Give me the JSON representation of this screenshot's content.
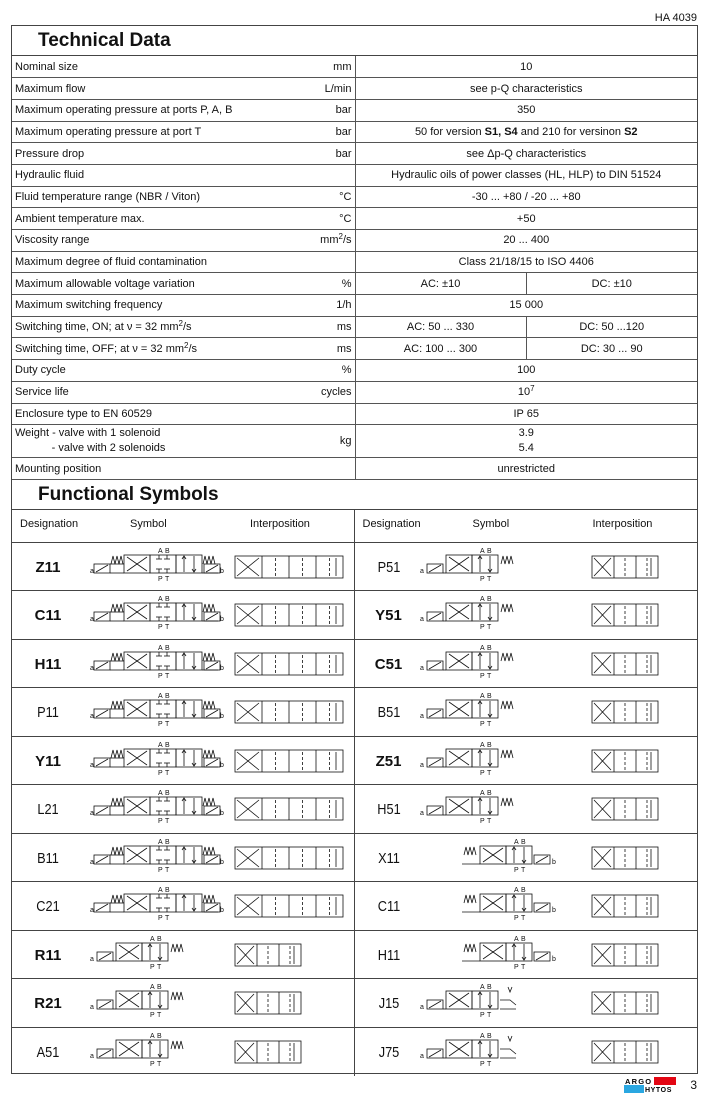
{
  "doc_id": "HA 4039",
  "technical_data": {
    "title": "Technical Data",
    "rows": [
      {
        "label": "Nominal size",
        "unit": "mm",
        "value": "10"
      },
      {
        "label": "Maximum flow",
        "unit": "L/min",
        "value": "see p-Q characteristics"
      },
      {
        "label": "Maximum operating pressure at ports  P, A, B",
        "unit": "bar",
        "value": "350"
      },
      {
        "label": "Maximum operating pressure at port T",
        "unit": "bar",
        "value_html": "50 for version <b>S1, S4</b> and 210 for versinon <b>S2</b>"
      },
      {
        "label": "Pressure drop",
        "unit": "bar",
        "value": "see Δp-Q characteristics"
      },
      {
        "label": "Hydraulic fluid",
        "unit": "",
        "value": "Hydraulic oils of power classes (HL, HLP) to DIN 51524"
      },
      {
        "label": "Fluid  temperature range (NBR / Viton)",
        "unit": "°C",
        "value": "-30 ...  +80 / -20 ... +80"
      },
      {
        "label": "Ambient temperature max.",
        "unit": "°C",
        "value": "+50"
      },
      {
        "label": "Viscosity range",
        "unit_html": "mm<sup>2</sup>/s",
        "value": "20 ... 400"
      },
      {
        "label": "Maximum degree of fluid contamination",
        "unit": "",
        "value": "Class 21/18/15 to ISO 4406"
      },
      {
        "label": "Maximum allowable voltage variation",
        "unit": "%",
        "ac": "AC: ±10",
        "dc": "DC: ±10"
      },
      {
        "label": "Maximum switching frequency",
        "unit": "1/h",
        "value": "15 000"
      },
      {
        "label_html": "Switching time, ON; at ν = 32 mm<sup>2</sup>/s",
        "unit": "ms",
        "ac": "AC: 50 ... 330",
        "dc": "DC: 50 ...120"
      },
      {
        "label_html": "Switching time, OFF; at ν = 32 mm<sup>2</sup>/s",
        "unit": "ms",
        "ac": "AC: 100 ... 300",
        "dc": "DC: 30 ... 90"
      },
      {
        "label": "Duty cycle",
        "unit": "%",
        "value": "100"
      },
      {
        "label": "Service life",
        "unit": "cycles",
        "value_html": "10<sup>7</sup>"
      },
      {
        "label": "Enclosure type to EN 60529",
        "unit": "",
        "value": "IP 65"
      },
      {
        "label_html": "Weight - valve with 1 solenoid<br>&nbsp;&nbsp;&nbsp;&nbsp;&nbsp;&nbsp;&nbsp;&nbsp;&nbsp;&nbsp;&nbsp;&nbsp;- valve with 2 solenoids",
        "unit": "kg",
        "value_html": "3.9<br>5.4",
        "weight": true
      },
      {
        "label": "Mounting position",
        "unit": "",
        "value": "unrestricted"
      }
    ]
  },
  "functional_symbols": {
    "title": "Functional Symbols",
    "headers": {
      "designation": "Designation",
      "symbol": "Symbol",
      "interposition": "Interposition"
    },
    "port_labels": {
      "a": "A",
      "b": "B",
      "p": "P",
      "t": "T",
      "sol_a": "a",
      "sol_b": "b"
    },
    "left": [
      {
        "d": "Z11",
        "bold": true,
        "type": "double-solenoid-3-position"
      },
      {
        "d": "C11",
        "bold": true,
        "type": "double-solenoid-3-position"
      },
      {
        "d": "H11",
        "bold": true,
        "type": "double-solenoid-3-position"
      },
      {
        "d": "P11",
        "bold": false,
        "type": "double-solenoid-3-position"
      },
      {
        "d": "Y11",
        "bold": true,
        "type": "double-solenoid-3-position"
      },
      {
        "d": "L21",
        "bold": false,
        "type": "double-solenoid-3-position"
      },
      {
        "d": "B11",
        "bold": false,
        "type": "double-solenoid-3-position"
      },
      {
        "d": "C21",
        "bold": false,
        "type": "double-solenoid-3-position"
      },
      {
        "d": "R11",
        "bold": true,
        "type": "solenoid-a-spring-2-position"
      },
      {
        "d": "R21",
        "bold": true,
        "type": "solenoid-a-spring-2-position"
      },
      {
        "d": "A51",
        "bold": false,
        "type": "solenoid-a-spring-2-position"
      }
    ],
    "right": [
      {
        "d": "P51",
        "bold": false,
        "type": "solenoid-a-spring-2-position"
      },
      {
        "d": "Y51",
        "bold": true,
        "type": "solenoid-a-spring-2-position"
      },
      {
        "d": "C51",
        "bold": true,
        "type": "solenoid-a-spring-2-position"
      },
      {
        "d": "B51",
        "bold": false,
        "type": "solenoid-a-spring-2-position"
      },
      {
        "d": "Z51",
        "bold": true,
        "type": "solenoid-a-spring-2-position"
      },
      {
        "d": "H51",
        "bold": false,
        "type": "solenoid-a-spring-2-position"
      },
      {
        "d": "X11",
        "bold": false,
        "type": "spring-solenoid-b-2-position"
      },
      {
        "d": "C11",
        "bold": false,
        "type": "spring-solenoid-b-2-position"
      },
      {
        "d": "H11",
        "bold": false,
        "type": "spring-solenoid-b-2-position"
      },
      {
        "d": "J15",
        "bold": false,
        "type": "solenoid-a-detent-2-position"
      },
      {
        "d": "J75",
        "bold": false,
        "type": "solenoid-a-detent-2-position"
      }
    ]
  },
  "footer": {
    "logo_top": "ARGO",
    "logo_bottom": "HYTOS",
    "page": "3",
    "logo_colors": {
      "red": "#e30613",
      "blue": "#2aa7e1"
    }
  }
}
